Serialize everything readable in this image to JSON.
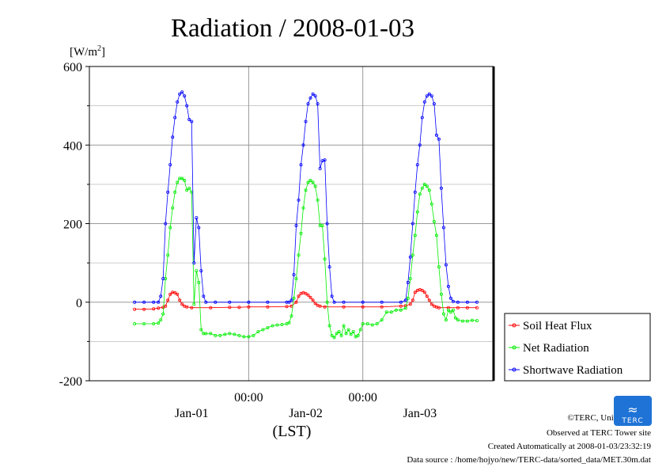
{
  "chart_data": {
    "type": "line",
    "title": "Radiation / 2008-01-03",
    "yunit_main": "[W/m",
    "yunit_sup": "2",
    "yunit_close": "]",
    "xlabel": "(LST)",
    "ylim": [
      -200,
      600
    ],
    "yticks": [
      "600",
      "400",
      "200",
      "0",
      "-200"
    ],
    "ytick_values": [
      600,
      400,
      200,
      0,
      -200
    ],
    "xlim": [
      0,
      72
    ],
    "x_unit": "hours from 2008-01-01 12:00 LST (30 min steps)",
    "x_ticks_top": [
      {
        "x": 12,
        "label": "00:00"
      },
      {
        "x": 36,
        "label": "00:00"
      }
    ],
    "x_ticks_bottom": [
      {
        "x": 0,
        "label": "Jan-01"
      },
      {
        "x": 24,
        "label": "Jan-02"
      },
      {
        "x": 48,
        "label": "Jan-03"
      }
    ],
    "grid": true,
    "legend_position": "right",
    "series": [
      {
        "name": "Soil Heat Flux",
        "color": "#ff0000",
        "points": [
          [
            -12,
            -18
          ],
          [
            -10,
            -18
          ],
          [
            -8,
            -17
          ],
          [
            -7,
            -15
          ],
          [
            -6,
            -13
          ],
          [
            -5.5,
            -10
          ],
          [
            -5,
            5
          ],
          [
            -4.5,
            20
          ],
          [
            -4,
            25
          ],
          [
            -3.5,
            24
          ],
          [
            -3,
            20
          ],
          [
            -2.5,
            5
          ],
          [
            -2,
            -5
          ],
          [
            -1.5,
            -10
          ],
          [
            -1,
            -12
          ],
          [
            0,
            -14
          ],
          [
            4,
            -14
          ],
          [
            8,
            -13
          ],
          [
            10,
            -13
          ],
          [
            12,
            -12
          ],
          [
            16,
            -12
          ],
          [
            20,
            -11
          ],
          [
            21,
            -10
          ],
          [
            22,
            0
          ],
          [
            22.5,
            15
          ],
          [
            23,
            22
          ],
          [
            23.5,
            24
          ],
          [
            24,
            22
          ],
          [
            24.5,
            18
          ],
          [
            25,
            12
          ],
          [
            25.5,
            5
          ],
          [
            26,
            -3
          ],
          [
            26.5,
            -8
          ],
          [
            27,
            -10
          ],
          [
            28,
            -12
          ],
          [
            32,
            -12
          ],
          [
            36,
            -12
          ],
          [
            40,
            -12
          ],
          [
            44,
            -10
          ],
          [
            45,
            -9
          ],
          [
            46,
            -5
          ],
          [
            46.5,
            5
          ],
          [
            47,
            25
          ],
          [
            47.5,
            30
          ],
          [
            48,
            32
          ],
          [
            48.5,
            30
          ],
          [
            49,
            25
          ],
          [
            49.5,
            15
          ],
          [
            50,
            5
          ],
          [
            50.5,
            -5
          ],
          [
            51,
            -10
          ],
          [
            51.5,
            -12
          ],
          [
            52,
            -14
          ],
          [
            54,
            -14
          ],
          [
            56,
            -14
          ],
          [
            58,
            -14
          ],
          [
            60,
            -14
          ]
        ]
      },
      {
        "name": "Net Radiation",
        "color": "#00ee00",
        "points": [
          [
            -12,
            -55
          ],
          [
            -10,
            -55
          ],
          [
            -8,
            -55
          ],
          [
            -7,
            -53
          ],
          [
            -6.5,
            -45
          ],
          [
            -6,
            -30
          ],
          [
            -5.5,
            60
          ],
          [
            -5,
            120
          ],
          [
            -4.5,
            190
          ],
          [
            -4,
            240
          ],
          [
            -3.5,
            280
          ],
          [
            -3,
            305
          ],
          [
            -2.5,
            315
          ],
          [
            -2,
            315
          ],
          [
            -1.5,
            310
          ],
          [
            -1,
            285
          ],
          [
            -0.5,
            290
          ],
          [
            0,
            280
          ],
          [
            0.5,
            -5
          ],
          [
            1,
            80
          ],
          [
            1.5,
            50
          ],
          [
            2,
            -70
          ],
          [
            2.5,
            -80
          ],
          [
            3,
            -80
          ],
          [
            4,
            -80
          ],
          [
            5,
            -85
          ],
          [
            6,
            -85
          ],
          [
            7,
            -82
          ],
          [
            8,
            -80
          ],
          [
            9,
            -82
          ],
          [
            10,
            -85
          ],
          [
            11,
            -88
          ],
          [
            12,
            -88
          ],
          [
            13,
            -85
          ],
          [
            14,
            -75
          ],
          [
            15,
            -70
          ],
          [
            16,
            -65
          ],
          [
            17,
            -60
          ],
          [
            18,
            -58
          ],
          [
            19,
            -57
          ],
          [
            20,
            -55
          ],
          [
            20.5,
            -52
          ],
          [
            21,
            -35
          ],
          [
            21.5,
            10
          ],
          [
            22,
            60
          ],
          [
            22.5,
            120
          ],
          [
            23,
            175
          ],
          [
            23.5,
            240
          ],
          [
            24,
            285
          ],
          [
            24.5,
            305
          ],
          [
            25,
            310
          ],
          [
            25.5,
            305
          ],
          [
            26,
            295
          ],
          [
            26.5,
            260
          ],
          [
            27,
            195
          ],
          [
            27.5,
            195
          ],
          [
            28,
            110
          ],
          [
            28.5,
            0
          ],
          [
            29,
            -60
          ],
          [
            29.5,
            -85
          ],
          [
            30,
            -90
          ],
          [
            30.5,
            -80
          ],
          [
            31,
            -75
          ],
          [
            31.5,
            -85
          ],
          [
            32,
            -60
          ],
          [
            32.5,
            -80
          ],
          [
            33,
            -70
          ],
          [
            33.5,
            -82
          ],
          [
            34,
            -75
          ],
          [
            34.5,
            -88
          ],
          [
            35,
            -85
          ],
          [
            35.5,
            -70
          ],
          [
            36,
            -55
          ],
          [
            37,
            -55
          ],
          [
            38,
            -58
          ],
          [
            39,
            -55
          ],
          [
            40,
            -45
          ],
          [
            41,
            -25
          ],
          [
            42,
            -25
          ],
          [
            43,
            -20
          ],
          [
            44,
            -20
          ],
          [
            45,
            -15
          ],
          [
            45.5,
            10
          ],
          [
            46,
            60
          ],
          [
            46.5,
            120
          ],
          [
            47,
            170
          ],
          [
            47.5,
            230
          ],
          [
            48,
            275
          ],
          [
            48.5,
            290
          ],
          [
            49,
            300
          ],
          [
            49.5,
            295
          ],
          [
            50,
            285
          ],
          [
            50.5,
            250
          ],
          [
            51,
            205
          ],
          [
            51.5,
            170
          ],
          [
            52,
            90
          ],
          [
            52.5,
            20
          ],
          [
            53,
            -30
          ],
          [
            53.5,
            -45
          ],
          [
            54,
            -20
          ],
          [
            54.5,
            -25
          ],
          [
            55,
            -20
          ],
          [
            55.5,
            -40
          ],
          [
            56,
            -45
          ],
          [
            57,
            -48
          ],
          [
            58,
            -48
          ],
          [
            59,
            -46
          ],
          [
            60,
            -47
          ]
        ]
      },
      {
        "name": "Shortwave Radiation",
        "color": "#0000ff",
        "points": [
          [
            -12,
            0
          ],
          [
            -10,
            0
          ],
          [
            -8,
            0
          ],
          [
            -7,
            0
          ],
          [
            -6.5,
            15
          ],
          [
            -6,
            60
          ],
          [
            -5.5,
            200
          ],
          [
            -5,
            280
          ],
          [
            -4.5,
            350
          ],
          [
            -4,
            420
          ],
          [
            -3.5,
            470
          ],
          [
            -3,
            510
          ],
          [
            -2.5,
            530
          ],
          [
            -2,
            535
          ],
          [
            -1.5,
            525
          ],
          [
            -1,
            500
          ],
          [
            -0.5,
            465
          ],
          [
            0,
            460
          ],
          [
            0.5,
            100
          ],
          [
            1,
            215
          ],
          [
            1.5,
            190
          ],
          [
            2,
            80
          ],
          [
            2.5,
            15
          ],
          [
            3,
            0
          ],
          [
            5,
            0
          ],
          [
            8,
            0
          ],
          [
            12,
            0
          ],
          [
            16,
            0
          ],
          [
            20,
            0
          ],
          [
            20.5,
            0
          ],
          [
            21,
            5
          ],
          [
            21.5,
            70
          ],
          [
            22,
            195
          ],
          [
            22.5,
            260
          ],
          [
            23,
            350
          ],
          [
            23.5,
            400
          ],
          [
            24,
            460
          ],
          [
            24.5,
            505
          ],
          [
            25,
            520
          ],
          [
            25.5,
            530
          ],
          [
            26,
            525
          ],
          [
            26.5,
            505
          ],
          [
            27,
            340
          ],
          [
            27.5,
            360
          ],
          [
            28,
            362
          ],
          [
            28.5,
            200
          ],
          [
            29,
            90
          ],
          [
            29.5,
            15
          ],
          [
            30,
            0
          ],
          [
            32,
            0
          ],
          [
            36,
            0
          ],
          [
            40,
            0
          ],
          [
            44,
            0
          ],
          [
            45,
            5
          ],
          [
            45.5,
            50
          ],
          [
            46,
            115
          ],
          [
            46.5,
            200
          ],
          [
            47,
            280
          ],
          [
            47.5,
            350
          ],
          [
            48,
            400
          ],
          [
            48.5,
            470
          ],
          [
            49,
            510
          ],
          [
            49.5,
            525
          ],
          [
            50,
            530
          ],
          [
            50.5,
            525
          ],
          [
            51,
            505
          ],
          [
            51.5,
            425
          ],
          [
            52,
            415
          ],
          [
            52.5,
            290
          ],
          [
            53,
            190
          ],
          [
            53.5,
            95
          ],
          [
            54,
            40
          ],
          [
            54.5,
            10
          ],
          [
            55,
            2
          ],
          [
            56,
            0
          ],
          [
            58,
            0
          ],
          [
            60,
            0
          ]
        ]
      }
    ]
  },
  "credits": {
    "copyright": "©TERC, Univ. Tsukuba",
    "observed": "Observed at TERC Tower site",
    "created": "Created Automatically at 2008-01-03/23:32:19",
    "source": "Data source : /home/hojyo/new/TERC-data/sorted_data/MET.30m.dat",
    "logo_text": "TERC"
  }
}
